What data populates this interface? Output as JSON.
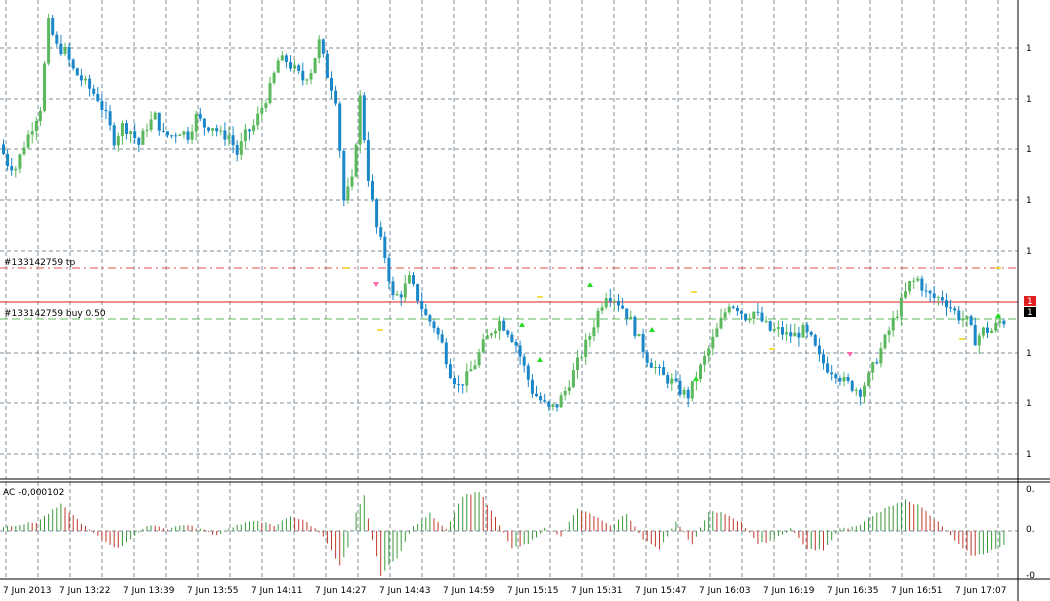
{
  "colors": {
    "background": "#ffffff",
    "grid": "#7f8c99",
    "bull": "#5cb85c",
    "bear": "#1a87c8",
    "tp_line": "#d9534f",
    "buy_line": "#5cb85c",
    "price_line": "#e02020",
    "ac_up": "#3a9a3a",
    "ac_down": "#c0392b",
    "arrow_up": "#22dd22",
    "arrow_down": "#ff66aa",
    "marker": "#f2d20a"
  },
  "main_panel": {
    "price_axis_labels": [
      "1",
      "1",
      "1",
      "1",
      "1",
      "1",
      "1",
      "1",
      "1"
    ],
    "tp_label": "#133142759 tp",
    "buy_label": "#133142759 buy 0.50",
    "price_tag_top": "1",
    "price_tag_bottom": "1"
  },
  "indicator_panel": {
    "label": "AC -0,000102",
    "axis_labels": [
      "0.",
      "0.",
      "-0"
    ]
  },
  "chart_data": {
    "type": "candlestick",
    "title": "",
    "x_tick_labels": [
      "7 Jun 2013",
      "7 Jun 13:22",
      "7 Jun 13:39",
      "7 Jun 13:55",
      "7 Jun 14:11",
      "7 Jun 14:27",
      "7 Jun 14:43",
      "7 Jun 14:59",
      "7 Jun 15:15",
      "7 Jun 15:31",
      "7 Jun 15:47",
      "7 Jun 16:03",
      "7 Jun 16:19",
      "7 Jun 16:35",
      "7 Jun 16:51",
      "7 Jun 17:07"
    ],
    "price_profile": [
      [
        0,
        0.7
      ],
      [
        2,
        0.66
      ],
      [
        4,
        0.65
      ],
      [
        6,
        0.7
      ],
      [
        8,
        0.74
      ],
      [
        10,
        0.78
      ],
      [
        12,
        0.96
      ],
      [
        14,
        0.91
      ],
      [
        16,
        0.9
      ],
      [
        18,
        0.86
      ],
      [
        20,
        0.84
      ],
      [
        22,
        0.82
      ],
      [
        24,
        0.8
      ],
      [
        26,
        0.76
      ],
      [
        28,
        0.71
      ],
      [
        30,
        0.74
      ],
      [
        32,
        0.73
      ],
      [
        34,
        0.7
      ],
      [
        36,
        0.74
      ],
      [
        38,
        0.76
      ],
      [
        40,
        0.72
      ],
      [
        42,
        0.72
      ],
      [
        44,
        0.73
      ],
      [
        46,
        0.72
      ],
      [
        48,
        0.76
      ],
      [
        50,
        0.74
      ],
      [
        52,
        0.74
      ],
      [
        54,
        0.72
      ],
      [
        56,
        0.72
      ],
      [
        58,
        0.68
      ],
      [
        60,
        0.72
      ],
      [
        62,
        0.74
      ],
      [
        64,
        0.78
      ],
      [
        66,
        0.82
      ],
      [
        68,
        0.88
      ],
      [
        70,
        0.88
      ],
      [
        72,
        0.86
      ],
      [
        74,
        0.84
      ],
      [
        76,
        0.86
      ],
      [
        78,
        0.92
      ],
      [
        80,
        0.85
      ],
      [
        82,
        0.8
      ],
      [
        84,
        0.58
      ],
      [
        86,
        0.62
      ],
      [
        88,
        0.8
      ],
      [
        90,
        0.63
      ],
      [
        92,
        0.52
      ],
      [
        94,
        0.46
      ],
      [
        96,
        0.37
      ],
      [
        98,
        0.38
      ],
      [
        100,
        0.41
      ],
      [
        102,
        0.37
      ],
      [
        104,
        0.33
      ],
      [
        106,
        0.31
      ],
      [
        108,
        0.27
      ],
      [
        110,
        0.21
      ],
      [
        112,
        0.18
      ],
      [
        114,
        0.2
      ],
      [
        116,
        0.23
      ],
      [
        118,
        0.27
      ],
      [
        120,
        0.3
      ],
      [
        122,
        0.32
      ],
      [
        124,
        0.3
      ],
      [
        126,
        0.27
      ],
      [
        128,
        0.22
      ],
      [
        130,
        0.17
      ],
      [
        132,
        0.15
      ],
      [
        134,
        0.13
      ],
      [
        136,
        0.14
      ],
      [
        138,
        0.17
      ],
      [
        140,
        0.21
      ],
      [
        142,
        0.25
      ],
      [
        144,
        0.29
      ],
      [
        146,
        0.34
      ],
      [
        148,
        0.38
      ],
      [
        150,
        0.37
      ],
      [
        152,
        0.35
      ],
      [
        154,
        0.32
      ],
      [
        156,
        0.28
      ],
      [
        158,
        0.24
      ],
      [
        160,
        0.22
      ],
      [
        162,
        0.2
      ],
      [
        164,
        0.19
      ],
      [
        166,
        0.17
      ],
      [
        168,
        0.16
      ],
      [
        170,
        0.2
      ],
      [
        172,
        0.24
      ],
      [
        174,
        0.28
      ],
      [
        176,
        0.32
      ],
      [
        178,
        0.36
      ],
      [
        180,
        0.35
      ],
      [
        182,
        0.33
      ],
      [
        184,
        0.34
      ],
      [
        186,
        0.32
      ],
      [
        188,
        0.3
      ],
      [
        190,
        0.3
      ],
      [
        192,
        0.29
      ],
      [
        194,
        0.29
      ],
      [
        196,
        0.3
      ],
      [
        198,
        0.28
      ],
      [
        200,
        0.24
      ],
      [
        202,
        0.22
      ],
      [
        204,
        0.21
      ],
      [
        206,
        0.19
      ],
      [
        208,
        0.18
      ],
      [
        210,
        0.17
      ],
      [
        212,
        0.2
      ],
      [
        214,
        0.24
      ],
      [
        216,
        0.28
      ],
      [
        218,
        0.32
      ],
      [
        220,
        0.36
      ],
      [
        222,
        0.4
      ],
      [
        224,
        0.41
      ],
      [
        226,
        0.38
      ],
      [
        228,
        0.37
      ],
      [
        230,
        0.37
      ],
      [
        232,
        0.35
      ],
      [
        234,
        0.33
      ],
      [
        236,
        0.32
      ],
      [
        238,
        0.28
      ],
      [
        240,
        0.3
      ],
      [
        242,
        0.3
      ],
      [
        244,
        0.32
      ]
    ],
    "ac_series_profile": [
      [
        0,
        0.1
      ],
      [
        8,
        0.2
      ],
      [
        14,
        0.6
      ],
      [
        20,
        0.1
      ],
      [
        24,
        -0.2
      ],
      [
        28,
        -0.4
      ],
      [
        32,
        -0.1
      ],
      [
        36,
        0.15
      ],
      [
        40,
        0.05
      ],
      [
        44,
        0.15
      ],
      [
        48,
        0.05
      ],
      [
        52,
        -0.1
      ],
      [
        56,
        0.1
      ],
      [
        62,
        0.25
      ],
      [
        66,
        0.1
      ],
      [
        70,
        0.35
      ],
      [
        74,
        0.2
      ],
      [
        78,
        -0.1
      ],
      [
        82,
        -0.8
      ],
      [
        84,
        -0.4
      ],
      [
        86,
        0.4
      ],
      [
        88,
        0.8
      ],
      [
        90,
        -0.2
      ],
      [
        92,
        -1.0
      ],
      [
        96,
        -0.6
      ],
      [
        100,
        0.1
      ],
      [
        104,
        0.4
      ],
      [
        108,
        0.05
      ],
      [
        112,
        0.8
      ],
      [
        116,
        0.9
      ],
      [
        120,
        0.3
      ],
      [
        124,
        -0.4
      ],
      [
        128,
        -0.3
      ],
      [
        132,
        0.05
      ],
      [
        136,
        -0.1
      ],
      [
        140,
        0.5
      ],
      [
        144,
        0.35
      ],
      [
        148,
        0.1
      ],
      [
        152,
        0.4
      ],
      [
        156,
        -0.2
      ],
      [
        160,
        -0.4
      ],
      [
        164,
        0.2
      ],
      [
        168,
        -0.3
      ],
      [
        172,
        0.45
      ],
      [
        176,
        0.4
      ],
      [
        180,
        0.2
      ],
      [
        184,
        -0.3
      ],
      [
        188,
        -0.2
      ],
      [
        192,
        0.05
      ],
      [
        196,
        -0.4
      ],
      [
        200,
        -0.45
      ],
      [
        204,
        0.05
      ],
      [
        208,
        0.1
      ],
      [
        212,
        0.35
      ],
      [
        216,
        0.55
      ],
      [
        220,
        0.7
      ],
      [
        224,
        0.55
      ],
      [
        228,
        0.2
      ],
      [
        232,
        -0.2
      ],
      [
        236,
        -0.55
      ],
      [
        240,
        -0.5
      ],
      [
        244,
        -0.3
      ]
    ],
    "grid": true,
    "num_bars": 245
  }
}
